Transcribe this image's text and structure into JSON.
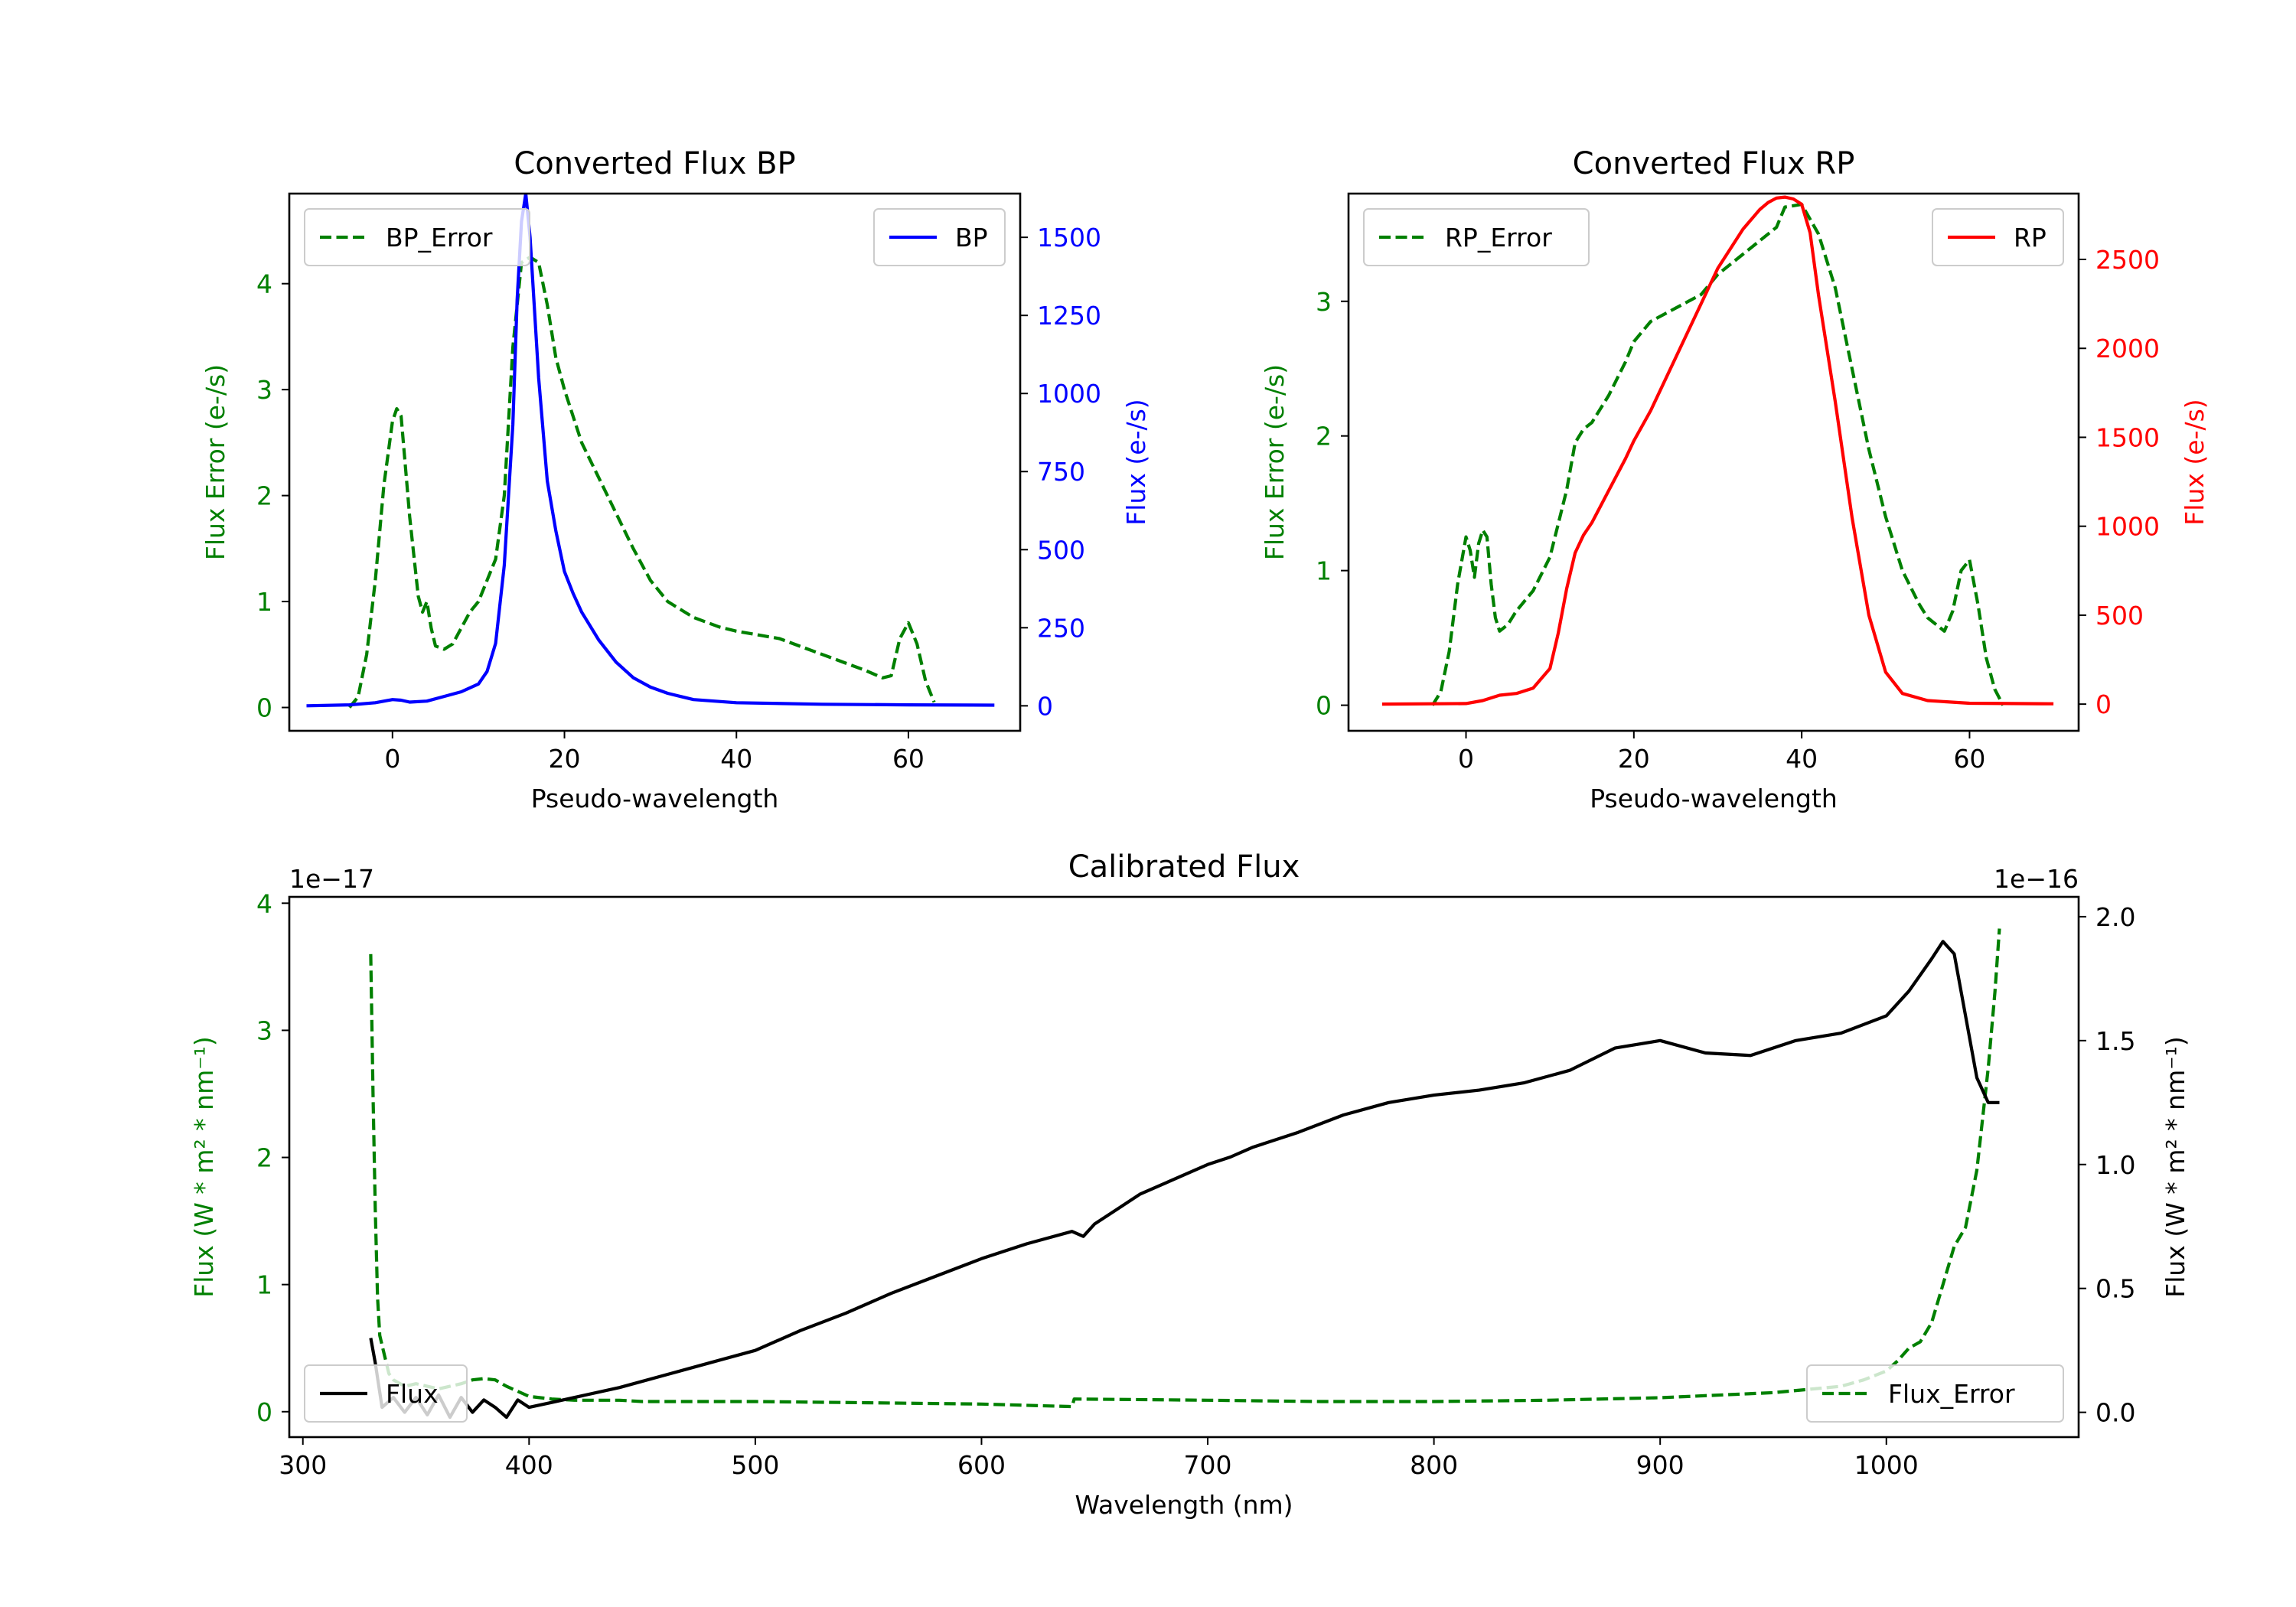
{
  "chart_data": [
    {
      "type": "line",
      "title": "Converted Flux BP",
      "xlabel": "Pseudo-wavelength",
      "ylabel_left": "Flux Error (e-/s)",
      "ylabel_right": "Flux (e-/s)",
      "xlim": [
        -12,
        73
      ],
      "ylim_left": [
        -0.22,
        4.85
      ],
      "ylim_right": [
        -80,
        1640
      ],
      "xticks": [
        0,
        20,
        40,
        60
      ],
      "yticks_left": [
        0,
        1,
        2,
        3,
        4
      ],
      "yticks_right": [
        0,
        250,
        500,
        750,
        1000,
        1250,
        1500
      ],
      "left_axis_color": "#008000",
      "right_axis_color": "#0000ff",
      "legend_left": "BP_Error",
      "legend_right": "BP",
      "series": [
        {
          "name": "BP_Error",
          "axis": "left",
          "color": "#008000",
          "dash": true,
          "x": [
            -5,
            -4,
            -3,
            -2,
            -1,
            0,
            0.5,
            1,
            2,
            3,
            3.5,
            4,
            4.5,
            5,
            6,
            7,
            8,
            9,
            10,
            11,
            12,
            13,
            14,
            15,
            16,
            17,
            18,
            19,
            20,
            22,
            25,
            28,
            30,
            32,
            35,
            38,
            40,
            45,
            50,
            55,
            57,
            58,
            59,
            60,
            61,
            62,
            63
          ],
          "y": [
            0,
            0.1,
            0.5,
            1.2,
            2.1,
            2.7,
            2.82,
            2.75,
            1.8,
            1.05,
            0.9,
            1.0,
            0.75,
            0.58,
            0.55,
            0.6,
            0.75,
            0.9,
            1.0,
            1.2,
            1.4,
            2.0,
            3.4,
            4.2,
            4.25,
            4.2,
            3.8,
            3.3,
            3.0,
            2.5,
            2.0,
            1.5,
            1.2,
            1.0,
            0.85,
            0.76,
            0.72,
            0.65,
            0.5,
            0.35,
            0.28,
            0.3,
            0.65,
            0.8,
            0.6,
            0.25,
            0.05
          ]
        },
        {
          "name": "BP",
          "axis": "right",
          "color": "#0000ff",
          "dash": false,
          "x": [
            -10,
            -5,
            -2,
            0,
            1,
            2,
            4,
            6,
            8,
            10,
            11,
            12,
            13,
            14,
            14.5,
            15,
            15.5,
            16,
            17,
            18,
            19,
            20,
            21,
            22,
            24,
            26,
            28,
            30,
            32,
            35,
            40,
            50,
            60,
            70
          ],
          "y": [
            0,
            3,
            10,
            20,
            18,
            12,
            15,
            30,
            45,
            70,
            110,
            200,
            450,
            900,
            1300,
            1550,
            1640,
            1500,
            1050,
            720,
            560,
            430,
            360,
            300,
            210,
            140,
            90,
            60,
            40,
            20,
            10,
            5,
            3,
            2
          ]
        }
      ]
    },
    {
      "type": "line",
      "title": "Converted Flux RP",
      "xlabel": "Pseudo-wavelength",
      "ylabel_left": "Flux Error (e-/s)",
      "ylabel_right": "Flux (e-/s)",
      "xlim": [
        -14,
        73
      ],
      "ylim_left": [
        -0.19,
        3.8
      ],
      "ylim_right": [
        -150,
        2870
      ],
      "xticks": [
        0,
        20,
        40,
        60
      ],
      "yticks_left": [
        0,
        1,
        2,
        3
      ],
      "yticks_right": [
        0,
        500,
        1000,
        1500,
        2000,
        2500
      ],
      "left_axis_color": "#008000",
      "right_axis_color": "#ff0000",
      "legend_left": "RP_Error",
      "legend_right": "RP",
      "series": [
        {
          "name": "RP_Error",
          "axis": "left",
          "color": "#008000",
          "dash": true,
          "x": [
            -4,
            -3,
            -2,
            -1,
            0,
            0.5,
            1,
            1.5,
            2,
            2.5,
            3,
            3.5,
            4,
            5,
            6,
            8,
            10,
            12,
            13,
            14,
            15,
            17,
            19,
            20,
            22,
            25,
            28,
            30,
            33,
            35,
            37,
            38,
            40,
            42,
            44,
            46,
            48,
            50,
            52,
            54,
            55,
            56,
            57,
            58,
            59,
            60,
            61,
            62,
            63,
            64
          ],
          "y": [
            0,
            0.1,
            0.4,
            0.9,
            1.25,
            1.15,
            0.95,
            1.2,
            1.3,
            1.25,
            0.9,
            0.65,
            0.55,
            0.6,
            0.7,
            0.85,
            1.1,
            1.6,
            1.95,
            2.05,
            2.1,
            2.3,
            2.55,
            2.7,
            2.85,
            2.95,
            3.05,
            3.2,
            3.35,
            3.45,
            3.55,
            3.7,
            3.72,
            3.5,
            3.1,
            2.5,
            1.9,
            1.4,
            1.0,
            0.75,
            0.65,
            0.6,
            0.55,
            0.7,
            1.0,
            1.08,
            0.75,
            0.35,
            0.12,
            0
          ]
        },
        {
          "name": "RP",
          "axis": "right",
          "color": "#ff0000",
          "dash": false,
          "x": [
            -10,
            0,
            2,
            4,
            6,
            8,
            10,
            11,
            12,
            13,
            14,
            15,
            17,
            19,
            20,
            22,
            25,
            28,
            30,
            33,
            35,
            36,
            37,
            38,
            39,
            40,
            41,
            42,
            44,
            46,
            48,
            50,
            52,
            55,
            60,
            70
          ],
          "y": [
            0,
            3,
            20,
            50,
            60,
            90,
            200,
            400,
            650,
            850,
            950,
            1020,
            1200,
            1380,
            1480,
            1650,
            1950,
            2250,
            2450,
            2670,
            2780,
            2820,
            2845,
            2850,
            2840,
            2810,
            2650,
            2300,
            1700,
            1050,
            500,
            180,
            60,
            20,
            5,
            2
          ]
        }
      ]
    },
    {
      "type": "line",
      "title": "Calibrated Flux",
      "xlabel": "Wavelength (nm)",
      "ylabel_left": "Flux (W * m² * nm⁻¹)",
      "ylabel_right": "Flux (W * m² * nm⁻¹)",
      "xlim": [
        294,
        1085
      ],
      "ylim_left": [
        -0.2,
        4.05
      ],
      "ylim_right": [
        -0.1,
        2.08
      ],
      "xticks": [
        300,
        400,
        500,
        600,
        700,
        800,
        900,
        1000
      ],
      "yticks_left": [
        0,
        1,
        2,
        3,
        4
      ],
      "yticks_right": [
        "0.0",
        "0.5",
        "1.0",
        "1.5",
        "2.0"
      ],
      "left_offset": "1e−17",
      "right_offset": "1e−16",
      "left_axis_color": "#008000",
      "right_axis_color": "#000000",
      "legend_left": "Flux",
      "legend_right": "Flux_Error",
      "series": [
        {
          "name": "Flux_Error",
          "axis": "left",
          "color": "#008000",
          "dash": true,
          "x": [
            330,
            331,
            332,
            333,
            334,
            336,
            338,
            340,
            345,
            350,
            355,
            360,
            365,
            370,
            375,
            380,
            385,
            390,
            400,
            410,
            420,
            430,
            440,
            450,
            500,
            550,
            600,
            640,
            641,
            700,
            750,
            800,
            850,
            900,
            950,
            980,
            990,
            1000,
            1005,
            1010,
            1015,
            1020,
            1025,
            1030,
            1035,
            1040,
            1045,
            1048,
            1050
          ],
          "y": [
            3.6,
            2.5,
            1.6,
            0.9,
            0.6,
            0.45,
            0.3,
            0.25,
            0.2,
            0.22,
            0.2,
            0.18,
            0.2,
            0.22,
            0.25,
            0.26,
            0.25,
            0.2,
            0.12,
            0.1,
            0.09,
            0.09,
            0.09,
            0.08,
            0.08,
            0.07,
            0.06,
            0.04,
            0.1,
            0.09,
            0.08,
            0.08,
            0.09,
            0.11,
            0.15,
            0.2,
            0.25,
            0.32,
            0.4,
            0.5,
            0.55,
            0.7,
            1.0,
            1.3,
            1.45,
            1.9,
            2.7,
            3.3,
            3.8
          ]
        },
        {
          "name": "Flux",
          "axis": "right",
          "color": "#000000",
          "dash": false,
          "x": [
            330,
            332,
            335,
            340,
            345,
            350,
            355,
            360,
            365,
            370,
            375,
            380,
            385,
            390,
            395,
            400,
            410,
            420,
            440,
            460,
            480,
            500,
            520,
            540,
            560,
            580,
            600,
            620,
            640,
            645,
            650,
            660,
            670,
            680,
            690,
            700,
            710,
            720,
            740,
            760,
            780,
            800,
            820,
            840,
            860,
            880,
            900,
            920,
            940,
            960,
            980,
            1000,
            1010,
            1020,
            1025,
            1030,
            1035,
            1040,
            1045,
            1050
          ],
          "y": [
            0.3,
            0.2,
            0.02,
            0.06,
            0.0,
            0.06,
            -0.01,
            0.07,
            -0.02,
            0.06,
            0.0,
            0.05,
            0.02,
            -0.02,
            0.05,
            0.02,
            0.04,
            0.06,
            0.1,
            0.15,
            0.2,
            0.25,
            0.33,
            0.4,
            0.48,
            0.55,
            0.62,
            0.68,
            0.73,
            0.71,
            0.76,
            0.82,
            0.88,
            0.92,
            0.96,
            1.0,
            1.03,
            1.07,
            1.13,
            1.2,
            1.25,
            1.28,
            1.3,
            1.33,
            1.38,
            1.47,
            1.5,
            1.45,
            1.44,
            1.5,
            1.53,
            1.6,
            1.7,
            1.83,
            1.9,
            1.85,
            1.6,
            1.35,
            1.25,
            1.25
          ]
        }
      ]
    }
  ]
}
